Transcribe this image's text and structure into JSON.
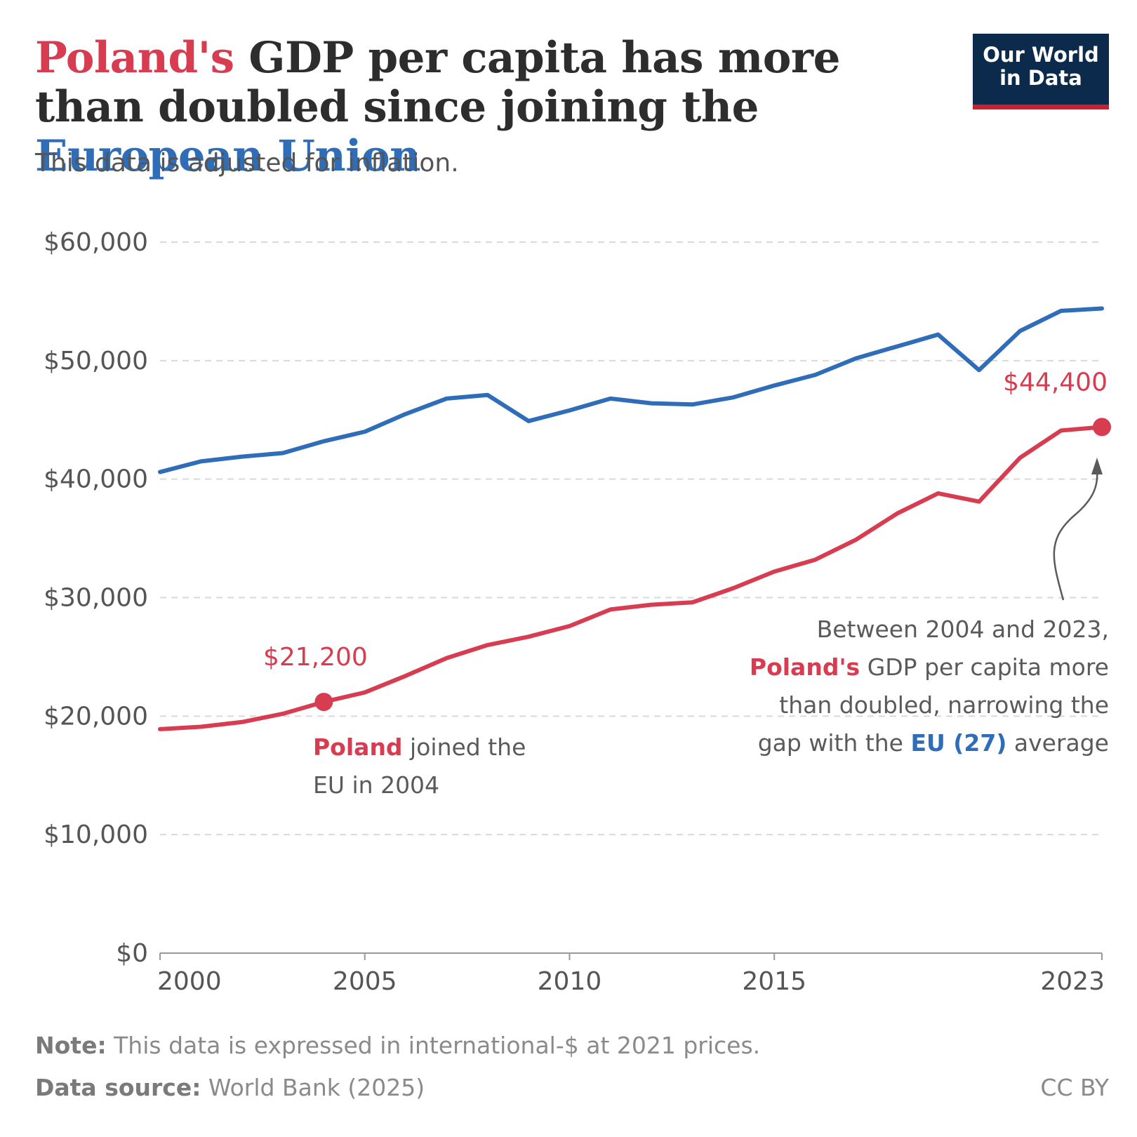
{
  "title": {
    "part1": "Poland's",
    "part2": " GDP per capita has more than doubled since joining the ",
    "part3": "European Union"
  },
  "subtitle": "This data is adjusted for inflation.",
  "logo": {
    "line1": "Our World",
    "line2": "in Data"
  },
  "annotations": {
    "join": {
      "country": "Poland",
      "text1": " joined the",
      "text2": "EU in 2004"
    },
    "summary": {
      "line1": "Between 2004 and 2023,",
      "country": "Poland's",
      "line2_rest": " GDP per capita more",
      "line3": "than doubled, narrowing the",
      "line4_start": "gap with the ",
      "eu": "EU (27)",
      "line4_end": " average"
    }
  },
  "footer": {
    "note_label": "Note:",
    "note_text": " This data is expressed in international-$ at 2021 prices.",
    "source_label": "Data source:",
    "source_text": " World Bank (2025)",
    "license": "CC BY"
  },
  "colors": {
    "poland": "#d73c50",
    "eu": "#2f6db8",
    "grid": "#d9d9d9",
    "axis": "#999999",
    "text": "#555555"
  },
  "chart_data": {
    "type": "line",
    "x": [
      2000,
      2001,
      2002,
      2003,
      2004,
      2005,
      2006,
      2007,
      2008,
      2009,
      2010,
      2011,
      2012,
      2013,
      2014,
      2015,
      2016,
      2017,
      2018,
      2019,
      2020,
      2021,
      2022,
      2023
    ],
    "series": [
      {
        "key": "eu",
        "values": [
          40600,
          41500,
          41900,
          42200,
          43200,
          44000,
          45500,
          46800,
          47100,
          44900,
          45800,
          46800,
          46400,
          46300,
          46900,
          47900,
          48800,
          50200,
          51200,
          52200,
          49200,
          52500,
          54200,
          54400
        ]
      },
      {
        "key": "poland",
        "values": [
          18900,
          19100,
          19500,
          20200,
          21200,
          22000,
          23400,
          24900,
          26000,
          26700,
          27600,
          29000,
          29400,
          29600,
          30800,
          32200,
          33200,
          34900,
          37100,
          38800,
          38100,
          41800,
          44100,
          44400
        ]
      }
    ],
    "ylim": [
      0,
      60000
    ],
    "y_ticks": [
      0,
      10000,
      20000,
      30000,
      40000,
      50000,
      60000
    ],
    "y_tick_labels": [
      "$0",
      "$10,000",
      "$20,000",
      "$30,000",
      "$40,000",
      "$50,000",
      "$60,000"
    ],
    "x_ticks": [
      2000,
      2005,
      2010,
      2015,
      2023
    ],
    "x_tick_labels": [
      "2000",
      "2005",
      "2010",
      "2015",
      "2023"
    ],
    "grid": true,
    "point_labels": [
      {
        "year": 2004,
        "value": 21200,
        "series": "poland",
        "label": "$21,200"
      },
      {
        "year": 2023,
        "value": 44400,
        "series": "poland",
        "label": "$44,400"
      }
    ]
  }
}
